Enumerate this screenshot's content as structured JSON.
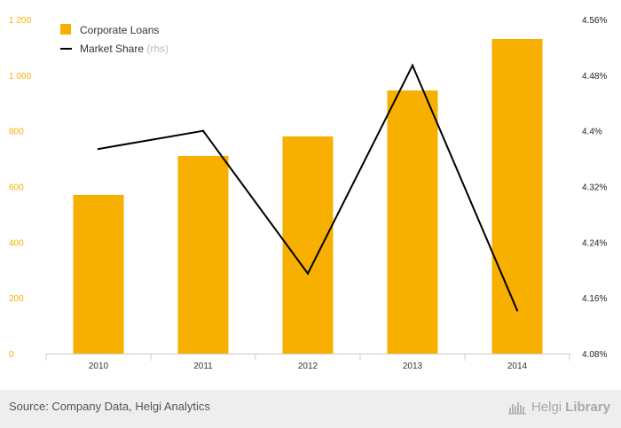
{
  "chart_data": {
    "type": "bar",
    "categories": [
      "2010",
      "2011",
      "2012",
      "2013",
      "2014"
    ],
    "series": [
      {
        "name": "Corporate Loans",
        "type": "bar",
        "axis": "left",
        "color": "#f7b000",
        "values": [
          570,
          710,
          780,
          945,
          1130
        ]
      },
      {
        "name": "Market Share",
        "name_suffix": "(rhs)",
        "type": "line",
        "axis": "right",
        "color": "#000000",
        "values": [
          4.374,
          4.4,
          4.195,
          4.494,
          4.142
        ]
      }
    ],
    "left_axis": {
      "ylim": [
        0,
        1200
      ],
      "ticks": [
        0,
        200,
        400,
        600,
        800,
        1000,
        1200
      ],
      "tick_labels": [
        "0",
        "200",
        "400",
        "600",
        "800",
        "1 000",
        "1 200"
      ],
      "color": "#f7b000"
    },
    "right_axis": {
      "ylim": [
        4.08,
        4.56
      ],
      "ticks": [
        4.08,
        4.16,
        4.24,
        4.32,
        4.4,
        4.48,
        4.56
      ],
      "tick_labels": [
        "4.08%",
        "4.16%",
        "4.24%",
        "4.32%",
        "4.4%",
        "4.48%",
        "4.56%"
      ]
    },
    "grid": false,
    "legend_position": "top-left"
  },
  "footer": {
    "source": "Source: Company Data, Helgi Analytics",
    "brand_part1": "Helgi",
    "brand_part2": "Library",
    "brand_icon": "helgi-library-icon"
  }
}
